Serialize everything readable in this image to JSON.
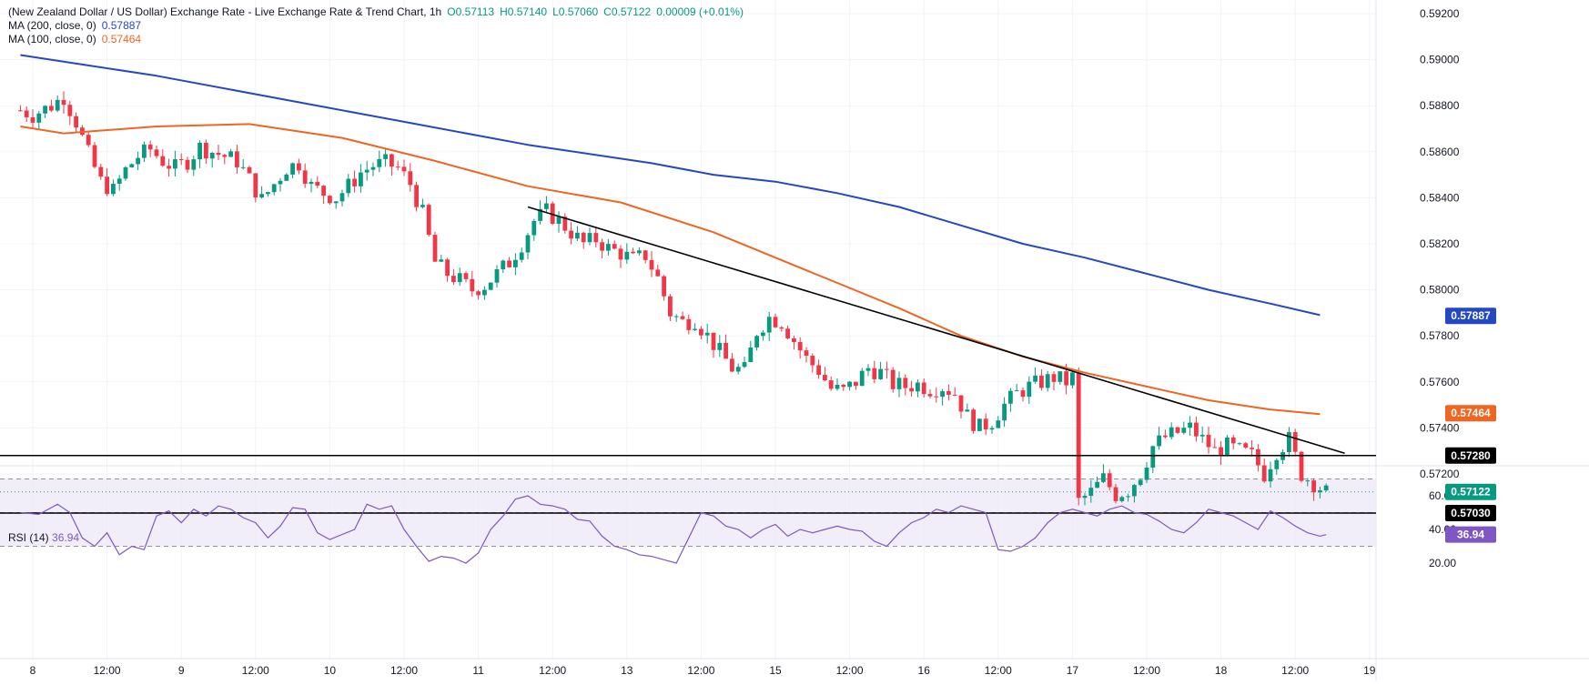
{
  "legend": {
    "main": "(New Zealand Dollar / US Dollar) Exchange Rate - Live Exchange Rate & Trend Chart, 1h",
    "open": "O0.57113",
    "high": "H0.57140",
    "low": "L0.57060",
    "close": "C0.57122",
    "change": "0.00009 (+0.01%)",
    "ma200_label": "MA (200, close, 0)",
    "ma200_value": "0.57887",
    "ma100_label": "MA (100, close, 0)",
    "ma100_value": "0.57464",
    "rsi_label": "RSI (14)",
    "rsi_value": "36.94"
  },
  "colors": {
    "up": "#089981",
    "down": "#f23645",
    "ma200": "#2447c4",
    "ma100": "#f0651f",
    "rsi": "#7e57c2",
    "rsi_band": "#ede7f6",
    "price_tag": "#089981",
    "level_tag": "#000000"
  },
  "chart_data": [
    {
      "type": "candlestick",
      "ylim": [
        0.57,
        0.5922
      ],
      "y_ticks": [
        "0.59200",
        "0.59000",
        "0.58800",
        "0.58600",
        "0.58400",
        "0.58200",
        "0.58000",
        "0.57800",
        "0.57600",
        "0.57400",
        "0.57200"
      ],
      "y_tick_values": [
        0.592,
        0.59,
        0.588,
        0.586,
        0.584,
        0.582,
        0.58,
        0.578,
        0.576,
        0.574,
        0.572
      ],
      "x_ticks": [
        "8",
        "12:00",
        "9",
        "12:00",
        "10",
        "12:00",
        "11",
        "12:00",
        "13",
        "12:00",
        "15",
        "12:00",
        "16",
        "12:00",
        "17",
        "12:00",
        "18",
        "12:00",
        "19"
      ],
      "x_tick_hours": [
        0,
        12,
        24,
        36,
        48,
        60,
        72,
        84,
        96,
        108,
        120,
        132,
        144,
        156,
        168,
        180,
        192,
        204,
        216
      ],
      "x_unit": "trading hours from 8th 00:00",
      "candle_hours_span": [
        -2,
        209
      ],
      "anchors": [
        [
          -2,
          0.5878
        ],
        [
          0,
          0.5876
        ],
        [
          3,
          0.588
        ],
        [
          5,
          0.5884
        ],
        [
          7,
          0.5873
        ],
        [
          9,
          0.5859
        ],
        [
          11,
          0.5847
        ],
        [
          13,
          0.5843
        ],
        [
          15,
          0.5852
        ],
        [
          17,
          0.5858
        ],
        [
          19,
          0.5861
        ],
        [
          21,
          0.5856
        ],
        [
          23,
          0.5853
        ],
        [
          25,
          0.5856
        ],
        [
          27,
          0.5862
        ],
        [
          29,
          0.586
        ],
        [
          31,
          0.5858
        ],
        [
          33,
          0.5856
        ],
        [
          35,
          0.5848
        ],
        [
          37,
          0.5839
        ],
        [
          39,
          0.5846
        ],
        [
          41,
          0.5853
        ],
        [
          43,
          0.5855
        ],
        [
          45,
          0.5845
        ],
        [
          47,
          0.5842
        ],
        [
          49,
          0.584
        ],
        [
          51,
          0.5845
        ],
        [
          53,
          0.5851
        ],
        [
          55,
          0.5854
        ],
        [
          57,
          0.5855
        ],
        [
          59,
          0.5853
        ],
        [
          61,
          0.5846
        ],
        [
          63,
          0.5833
        ],
        [
          65,
          0.5812
        ],
        [
          67,
          0.5807
        ],
        [
          69,
          0.5804
        ],
        [
          71,
          0.58
        ],
        [
          73,
          0.5802
        ],
        [
          75,
          0.5807
        ],
        [
          77,
          0.5812
        ],
        [
          79,
          0.582
        ],
        [
          81,
          0.583
        ],
        [
          83,
          0.5834
        ],
        [
          85,
          0.583
        ],
        [
          87,
          0.5825
        ],
        [
          89,
          0.582
        ],
        [
          91,
          0.5822
        ],
        [
          93,
          0.5818
        ],
        [
          95,
          0.5816
        ],
        [
          97,
          0.5813
        ],
        [
          99,
          0.5815
        ],
        [
          101,
          0.5805
        ],
        [
          103,
          0.579
        ],
        [
          105,
          0.5786
        ],
        [
          107,
          0.5787
        ],
        [
          109,
          0.578
        ],
        [
          111,
          0.5773
        ],
        [
          113,
          0.5766
        ],
        [
          115,
          0.5765
        ],
        [
          117,
          0.5782
        ],
        [
          119,
          0.5788
        ],
        [
          121,
          0.5786
        ],
        [
          123,
          0.5778
        ],
        [
          125,
          0.577
        ],
        [
          127,
          0.5765
        ],
        [
          129,
          0.5757
        ],
        [
          131,
          0.5756
        ],
        [
          133,
          0.576
        ],
        [
          135,
          0.5766
        ],
        [
          137,
          0.5764
        ],
        [
          139,
          0.5759
        ],
        [
          141,
          0.5758
        ],
        [
          143,
          0.5759
        ],
        [
          145,
          0.5757
        ],
        [
          147,
          0.5758
        ],
        [
          149,
          0.5755
        ],
        [
          151,
          0.5745
        ],
        [
          153,
          0.574
        ],
        [
          155,
          0.5743
        ],
        [
          157,
          0.575
        ],
        [
          159,
          0.5755
        ],
        [
          161,
          0.5758
        ],
        [
          163,
          0.576
        ],
        [
          165,
          0.5762
        ],
        [
          167,
          0.576
        ],
        [
          168,
          0.5762
        ],
        [
          169,
          0.5708
        ],
        [
          171,
          0.5712
        ],
        [
          173,
          0.5718
        ],
        [
          175,
          0.5711
        ],
        [
          177,
          0.5713
        ],
        [
          179,
          0.572
        ],
        [
          181,
          0.5732
        ],
        [
          183,
          0.5736
        ],
        [
          185,
          0.5738
        ],
        [
          187,
          0.574
        ],
        [
          189,
          0.5735
        ],
        [
          191,
          0.573
        ],
        [
          193,
          0.5732
        ],
        [
          195,
          0.573
        ],
        [
          197,
          0.5728
        ],
        [
          199,
          0.572
        ],
        [
          201,
          0.573
        ],
        [
          203,
          0.5735
        ],
        [
          205,
          0.572
        ],
        [
          207,
          0.5716
        ],
        [
          209,
          0.5712
        ]
      ],
      "ma200": {
        "name": "MA (200, close, 0)",
        "points": [
          [
            -2,
            0.5902
          ],
          [
            20,
            0.5893
          ],
          [
            40,
            0.5883
          ],
          [
            60,
            0.5873
          ],
          [
            80,
            0.5863
          ],
          [
            100,
            0.5855
          ],
          [
            110,
            0.585
          ],
          [
            120,
            0.5847
          ],
          [
            130,
            0.5842
          ],
          [
            140,
            0.5836
          ],
          [
            150,
            0.5828
          ],
          [
            160,
            0.582
          ],
          [
            170,
            0.5814
          ],
          [
            180,
            0.5807
          ],
          [
            190,
            0.58
          ],
          [
            200,
            0.5794
          ],
          [
            208,
            0.5789
          ]
        ]
      },
      "ma100": {
        "name": "MA (100, close, 0)",
        "points": [
          [
            -2,
            0.5871
          ],
          [
            5,
            0.5868
          ],
          [
            20,
            0.5871
          ],
          [
            35,
            0.5872
          ],
          [
            50,
            0.5866
          ],
          [
            65,
            0.5856
          ],
          [
            80,
            0.5845
          ],
          [
            95,
            0.5838
          ],
          [
            110,
            0.5825
          ],
          [
            120,
            0.5814
          ],
          [
            130,
            0.5803
          ],
          [
            140,
            0.5792
          ],
          [
            150,
            0.578
          ],
          [
            160,
            0.5771
          ],
          [
            170,
            0.5764
          ],
          [
            180,
            0.5758
          ],
          [
            190,
            0.5752
          ],
          [
            200,
            0.5748
          ],
          [
            208,
            0.5746
          ]
        ]
      },
      "trendline": [
        [
          80,
          0.5836
        ],
        [
          212,
          0.5729
        ]
      ],
      "levels": [
        {
          "value": 0.5728,
          "label": "0.57280"
        },
        {
          "value": 0.5703,
          "label": "0.57030"
        }
      ],
      "current_price": {
        "value": 0.57122,
        "label": "0.57122"
      },
      "tags": [
        {
          "value": 0.57887,
          "label": "0.57887",
          "series": "ma200"
        },
        {
          "value": 0.57464,
          "label": "0.57464",
          "series": "ma100"
        }
      ]
    },
    {
      "type": "line",
      "name": "RSI (14)",
      "ylim": [
        20,
        73
      ],
      "y_ticks": [
        "60.00",
        "40.00",
        "20.00"
      ],
      "y_tick_values": [
        60,
        40,
        20
      ],
      "band": [
        30,
        70
      ],
      "midline": 50,
      "current": {
        "value": 36.94,
        "label": "36.94"
      },
      "points": [
        [
          -2,
          50
        ],
        [
          1,
          49
        ],
        [
          4,
          55
        ],
        [
          6,
          50
        ],
        [
          8,
          35
        ],
        [
          10,
          30
        ],
        [
          12,
          38
        ],
        [
          14,
          25
        ],
        [
          16,
          30
        ],
        [
          18,
          28
        ],
        [
          20,
          48
        ],
        [
          22,
          51
        ],
        [
          24,
          44
        ],
        [
          26,
          52
        ],
        [
          28,
          48
        ],
        [
          30,
          54
        ],
        [
          32,
          52
        ],
        [
          34,
          47
        ],
        [
          36,
          44
        ],
        [
          38,
          35
        ],
        [
          40,
          42
        ],
        [
          42,
          53
        ],
        [
          44,
          52
        ],
        [
          46,
          38
        ],
        [
          48,
          34
        ],
        [
          50,
          37
        ],
        [
          52,
          40
        ],
        [
          54,
          55
        ],
        [
          56,
          52
        ],
        [
          58,
          54
        ],
        [
          60,
          40
        ],
        [
          62,
          30
        ],
        [
          64,
          21
        ],
        [
          66,
          24
        ],
        [
          68,
          23
        ],
        [
          70,
          20
        ],
        [
          72,
          26
        ],
        [
          74,
          40
        ],
        [
          76,
          48
        ],
        [
          78,
          58
        ],
        [
          80,
          60
        ],
        [
          82,
          55
        ],
        [
          84,
          54
        ],
        [
          86,
          52
        ],
        [
          88,
          46
        ],
        [
          90,
          45
        ],
        [
          92,
          36
        ],
        [
          94,
          30
        ],
        [
          96,
          28
        ],
        [
          98,
          25
        ],
        [
          100,
          24
        ],
        [
          102,
          22
        ],
        [
          104,
          20
        ],
        [
          106,
          35
        ],
        [
          108,
          50
        ],
        [
          110,
          48
        ],
        [
          112,
          42
        ],
        [
          114,
          40
        ],
        [
          116,
          35
        ],
        [
          118,
          40
        ],
        [
          120,
          43
        ],
        [
          122,
          36
        ],
        [
          124,
          40
        ],
        [
          126,
          38
        ],
        [
          128,
          40
        ],
        [
          130,
          42
        ],
        [
          132,
          40
        ],
        [
          134,
          39
        ],
        [
          136,
          33
        ],
        [
          138,
          30
        ],
        [
          140,
          38
        ],
        [
          142,
          44
        ],
        [
          144,
          47
        ],
        [
          146,
          52
        ],
        [
          148,
          50
        ],
        [
          150,
          54
        ],
        [
          152,
          52
        ],
        [
          154,
          50
        ],
        [
          156,
          28
        ],
        [
          158,
          27
        ],
        [
          160,
          30
        ],
        [
          162,
          35
        ],
        [
          164,
          44
        ],
        [
          166,
          50
        ],
        [
          168,
          52
        ],
        [
          170,
          50
        ],
        [
          172,
          48
        ],
        [
          174,
          52
        ],
        [
          176,
          54
        ],
        [
          178,
          50
        ],
        [
          180,
          49
        ],
        [
          182,
          45
        ],
        [
          184,
          40
        ],
        [
          186,
          38
        ],
        [
          188,
          44
        ],
        [
          190,
          52
        ],
        [
          192,
          50
        ],
        [
          194,
          48
        ],
        [
          196,
          44
        ],
        [
          198,
          40
        ],
        [
          200,
          51
        ],
        [
          202,
          47
        ],
        [
          204,
          42
        ],
        [
          206,
          38
        ],
        [
          208,
          36
        ],
        [
          209,
          36.94
        ]
      ]
    }
  ]
}
